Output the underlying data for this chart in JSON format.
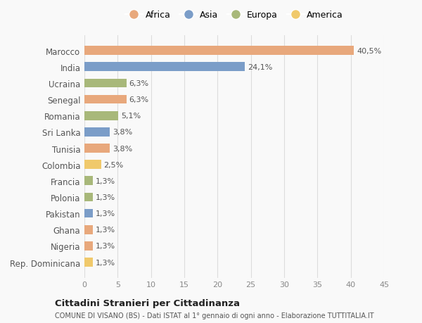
{
  "countries": [
    "Marocco",
    "India",
    "Ucraina",
    "Senegal",
    "Romania",
    "Sri Lanka",
    "Tunisia",
    "Colombia",
    "Francia",
    "Polonia",
    "Pakistan",
    "Ghana",
    "Nigeria",
    "Rep. Dominicana"
  ],
  "values": [
    40.5,
    24.1,
    6.3,
    6.3,
    5.1,
    3.8,
    3.8,
    2.5,
    1.3,
    1.3,
    1.3,
    1.3,
    1.3,
    1.3
  ],
  "labels": [
    "40,5%",
    "24,1%",
    "6,3%",
    "6,3%",
    "5,1%",
    "3,8%",
    "3,8%",
    "2,5%",
    "1,3%",
    "1,3%",
    "1,3%",
    "1,3%",
    "1,3%",
    "1,3%"
  ],
  "continents": [
    "Africa",
    "Asia",
    "Europa",
    "Africa",
    "Europa",
    "Asia",
    "Africa",
    "America",
    "Europa",
    "Europa",
    "Asia",
    "Africa",
    "Africa",
    "America"
  ],
  "colors": {
    "Africa": "#E8A87C",
    "Asia": "#7B9DC8",
    "Europa": "#A8B87A",
    "America": "#F0C96B"
  },
  "legend_order": [
    "Africa",
    "Asia",
    "Europa",
    "America"
  ],
  "xlim": [
    0,
    45
  ],
  "xticks": [
    0,
    5,
    10,
    15,
    20,
    25,
    30,
    35,
    40,
    45
  ],
  "title": "Cittadini Stranieri per Cittadinanza",
  "subtitle": "COMUNE DI VISANO (BS) - Dati ISTAT al 1° gennaio di ogni anno - Elaborazione TUTTITALIA.IT",
  "bg_color": "#f9f9f9",
  "grid_color": "#dddddd"
}
